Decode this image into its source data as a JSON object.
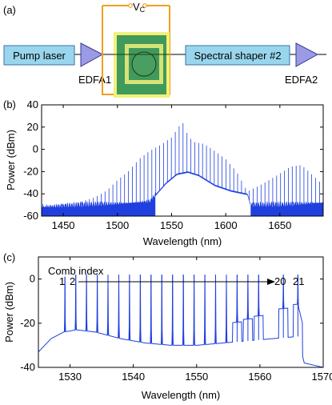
{
  "panel_a": {
    "label": "(a)",
    "pump": "Pump laser",
    "edfa1": "EDFA1",
    "shaper": "Spectral shaper #2",
    "edfa2": "EDFA2",
    "vc_main": "V",
    "vc_sub": "C",
    "colors": {
      "box_fill": "#99d6ee",
      "box_stroke": "#3a6fa8",
      "amp": "#9a9ae6",
      "wire": "#f0a020",
      "chip_yellow": "#f2f07a",
      "chip_green": "#3f9a5c"
    }
  },
  "chart_data": [
    {
      "label": "(b)",
      "type": "line",
      "xlabel": "Wavelength (nm)",
      "ylabel": "Power (dBm)",
      "xlim": [
        1430,
        1690
      ],
      "ylim": [
        -60,
        40
      ],
      "xticks": [
        1450,
        1500,
        1550,
        1600,
        1650
      ],
      "yticks": [
        -60,
        -40,
        -20,
        0,
        20,
        40
      ],
      "line_spacing_nm": 3.6,
      "series": [
        {
          "kind": "comb-peaks",
          "x": [
            1440,
            1460,
            1480,
            1490,
            1500,
            1510,
            1520,
            1530,
            1540,
            1550,
            1555,
            1560,
            1565,
            1570,
            1580,
            1590,
            1600,
            1610,
            1620,
            1630,
            1640,
            1650,
            1660,
            1670,
            1680,
            1690
          ],
          "y": [
            -52,
            -48,
            -40,
            -34,
            -25,
            -18,
            -8,
            -2,
            2,
            8,
            15,
            22,
            10,
            4,
            3,
            -2,
            -8,
            -18,
            -35,
            -30,
            -25,
            -20,
            -15,
            -15,
            -25,
            -35
          ]
        },
        {
          "kind": "floor",
          "x": [
            1430,
            1470,
            1500,
            1530,
            1536,
            1545,
            1555,
            1565,
            1575,
            1590,
            1605,
            1620,
            1623,
            1650,
            1690
          ],
          "y": [
            -52,
            -50,
            -49,
            -47,
            -40,
            -30,
            -22,
            -20,
            -23,
            -32,
            -37,
            -40,
            -50,
            -50,
            -48
          ]
        }
      ],
      "white_window_nm": [
        1535,
        1623
      ]
    },
    {
      "label": "(c)",
      "type": "line",
      "xlabel": "Wavelength (nm)",
      "ylabel": "Power (dBm)",
      "xlim": [
        1525,
        1570
      ],
      "ylim": [
        -40,
        10
      ],
      "xticks": [
        1530,
        1540,
        1550,
        1560,
        1570
      ],
      "yticks": [
        -40,
        -20,
        0
      ],
      "annotation": {
        "text": "Comb index",
        "first": "1",
        "second": "2",
        "penult": "20",
        "last": "21"
      },
      "series": [
        {
          "kind": "comb-lines",
          "x": [
            1529.2,
            1530.9,
            1532.6,
            1534.3,
            1536.0,
            1537.7,
            1539.4,
            1541.1,
            1542.8,
            1544.5,
            1546.2,
            1547.9,
            1549.6,
            1551.3,
            1553.0,
            1554.7,
            1556.4,
            1558.1,
            1559.8,
            1563.7,
            1566.0
          ],
          "y": [
            1,
            2,
            2,
            2,
            2,
            2,
            2,
            2,
            2,
            2,
            2,
            2,
            2,
            2,
            2,
            2,
            2,
            2,
            2,
            2,
            2
          ]
        },
        {
          "kind": "floor",
          "x": [
            1525,
            1527,
            1529,
            1531,
            1534,
            1538,
            1542,
            1546,
            1550,
            1554,
            1558,
            1562,
            1566,
            1567,
            1570
          ],
          "y": [
            -33,
            -27,
            -24,
            -23,
            -24,
            -27,
            -29,
            -30,
            -30,
            -29,
            -28,
            -27,
            -26,
            -38,
            -40
          ]
        }
      ]
    }
  ],
  "color": "#1f3fdf"
}
